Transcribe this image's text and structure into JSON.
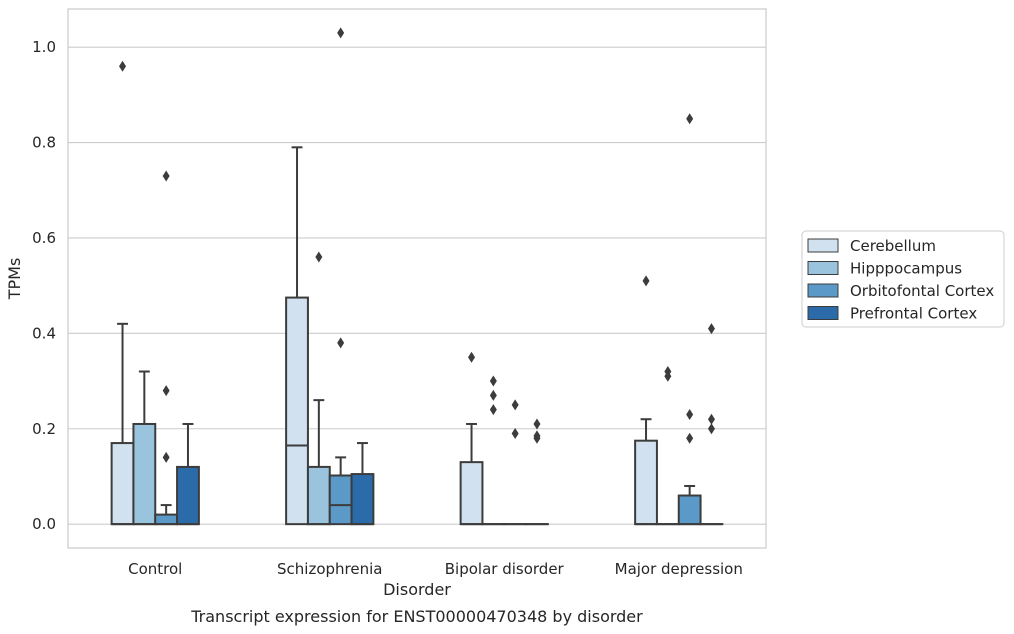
{
  "chart_data": {
    "type": "box",
    "title": "",
    "caption": "Transcript expression for ENST00000470348 by disorder",
    "xlabel": "Disorder",
    "ylabel": "TPMs",
    "ylim": [
      -0.05,
      1.08
    ],
    "yticks": [
      0.0,
      0.2,
      0.4,
      0.6,
      0.8,
      1.0
    ],
    "ytick_labels": [
      "0.0",
      "0.2",
      "0.4",
      "0.6",
      "0.8",
      "1.0"
    ],
    "grid": "horizontal",
    "legend_position": "right",
    "categories": [
      "Control",
      "Schizophrenia",
      "Bipolar disorder",
      "Major depression"
    ],
    "series": [
      {
        "name": "Cerebellum",
        "color": "#d1e1ef",
        "boxes": [
          {
            "q1": 0.0,
            "median": 0.0,
            "q3": 0.17,
            "whisker_low": 0.0,
            "whisker_high": 0.42,
            "outliers": [
              0.96
            ]
          },
          {
            "q1": 0.0,
            "median": 0.165,
            "q3": 0.475,
            "whisker_low": 0.0,
            "whisker_high": 0.79,
            "outliers": []
          },
          {
            "q1": 0.0,
            "median": 0.0,
            "q3": 0.13,
            "whisker_low": 0.0,
            "whisker_high": 0.21,
            "outliers": [
              0.35
            ]
          },
          {
            "q1": 0.0,
            "median": 0.0,
            "q3": 0.175,
            "whisker_low": 0.0,
            "whisker_high": 0.22,
            "outliers": [
              0.51
            ]
          }
        ]
      },
      {
        "name": "Hipppocampus",
        "color": "#9ac4dd",
        "boxes": [
          {
            "q1": 0.0,
            "median": 0.0,
            "q3": 0.21,
            "whisker_low": 0.0,
            "whisker_high": 0.32,
            "outliers": []
          },
          {
            "q1": 0.0,
            "median": 0.0,
            "q3": 0.12,
            "whisker_low": 0.0,
            "whisker_high": 0.26,
            "outliers": [
              0.56
            ]
          },
          {
            "q1": 0.0,
            "median": 0.0,
            "q3": 0.0,
            "whisker_low": 0.0,
            "whisker_high": 0.0,
            "outliers": [
              0.3,
              0.27,
              0.24
            ]
          },
          {
            "q1": 0.0,
            "median": 0.0,
            "q3": 0.0,
            "whisker_low": 0.0,
            "whisker_high": 0.0,
            "outliers": [
              0.32,
              0.31
            ]
          }
        ]
      },
      {
        "name": "Orbitofontal Cortex",
        "color": "#5b9ac8",
        "boxes": [
          {
            "q1": 0.0,
            "median": 0.0,
            "q3": 0.02,
            "whisker_low": 0.0,
            "whisker_high": 0.04,
            "outliers": [
              0.73,
              0.28,
              0.14
            ]
          },
          {
            "q1": 0.0,
            "median": 0.04,
            "q3": 0.102,
            "whisker_low": 0.0,
            "whisker_high": 0.14,
            "outliers": [
              1.03,
              0.38
            ]
          },
          {
            "q1": 0.0,
            "median": 0.0,
            "q3": 0.0,
            "whisker_low": 0.0,
            "whisker_high": 0.0,
            "outliers": [
              0.25,
              0.19
            ]
          },
          {
            "q1": 0.0,
            "median": 0.0,
            "q3": 0.06,
            "whisker_low": 0.0,
            "whisker_high": 0.08,
            "outliers": [
              0.85,
              0.23,
              0.18
            ]
          }
        ]
      },
      {
        "name": "Prefrontal Cortex",
        "color": "#2b6ba9",
        "boxes": [
          {
            "q1": 0.0,
            "median": 0.0,
            "q3": 0.12,
            "whisker_low": 0.0,
            "whisker_high": 0.21,
            "outliers": []
          },
          {
            "q1": 0.0,
            "median": 0.0,
            "q3": 0.105,
            "whisker_low": 0.0,
            "whisker_high": 0.17,
            "outliers": []
          },
          {
            "q1": 0.0,
            "median": 0.0,
            "q3": 0.0,
            "whisker_low": 0.0,
            "whisker_high": 0.0,
            "outliers": [
              0.21,
              0.185,
              0.18
            ]
          },
          {
            "q1": 0.0,
            "median": 0.0,
            "q3": 0.0,
            "whisker_low": 0.0,
            "whisker_high": 0.0,
            "outliers": [
              0.41,
              0.22,
              0.2
            ]
          }
        ]
      }
    ]
  }
}
